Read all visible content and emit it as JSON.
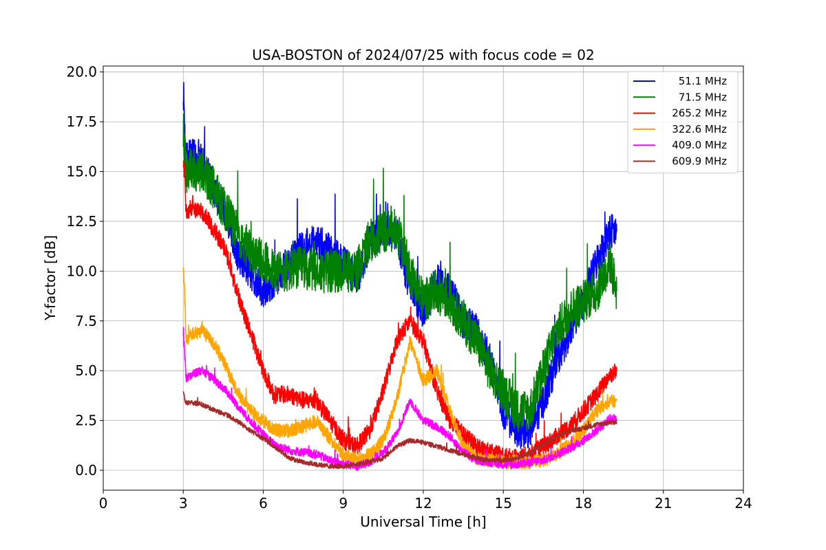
{
  "chart_data": {
    "type": "line",
    "title": "USA-BOSTON of 2024/07/25 with focus code = 02",
    "xlabel": "Universal Time [h]",
    "ylabel": "Y-factor [dB]",
    "xlim": [
      0,
      24
    ],
    "ylim": [
      -1,
      20.3
    ],
    "xticks": [
      0,
      3,
      6,
      9,
      12,
      15,
      18,
      21,
      24
    ],
    "xtick_labels": [
      "0",
      "3",
      "6",
      "9",
      "12",
      "15",
      "18",
      "21",
      "24"
    ],
    "yticks": [
      0,
      2.5,
      5,
      7.5,
      10,
      12.5,
      15,
      17.5,
      20
    ],
    "ytick_labels": [
      "0.0",
      "2.5",
      "5.0",
      "7.5",
      "10.0",
      "12.5",
      "15.0",
      "17.5",
      "20.0"
    ],
    "grid": true,
    "legend_position": "top-right",
    "series": [
      {
        "name": "51.1 MHz",
        "color": "#0000ff",
        "noise": 0.9,
        "x": [
          3.0,
          3.05,
          3.1,
          3.3,
          3.7,
          4.2,
          4.6,
          5.0,
          5.5,
          6.0,
          6.4,
          7.0,
          7.5,
          8.0,
          8.5,
          9.0,
          9.5,
          10.0,
          10.5,
          11.0,
          11.5,
          12.0,
          12.5,
          13.0,
          13.5,
          14.0,
          14.5,
          15.0,
          15.5,
          16.0,
          16.5,
          17.0,
          17.5,
          18.0,
          18.5,
          19.0,
          19.25
        ],
        "y": [
          19.2,
          17.5,
          15.5,
          15.8,
          15.5,
          14.0,
          13.0,
          11.0,
          10.0,
          9.0,
          9.5,
          10.5,
          11.2,
          11.5,
          11.0,
          10.5,
          9.5,
          11.5,
          12.0,
          12.0,
          9.0,
          8.0,
          9.5,
          9.0,
          7.5,
          7.0,
          5.5,
          3.0,
          2.0,
          2.0,
          3.5,
          5.5,
          7.0,
          8.5,
          10.5,
          12.0,
          12.0
        ]
      },
      {
        "name": "71.5 MHz",
        "color": "#008000",
        "noise": 1.1,
        "x": [
          3.0,
          3.05,
          3.1,
          3.3,
          3.7,
          4.2,
          4.6,
          5.0,
          5.5,
          6.0,
          6.4,
          7.0,
          7.5,
          8.0,
          8.5,
          9.0,
          9.5,
          10.0,
          10.5,
          11.0,
          11.5,
          12.0,
          12.5,
          13.0,
          13.5,
          14.0,
          14.5,
          15.0,
          15.5,
          16.0,
          16.5,
          17.0,
          17.5,
          18.0,
          18.5,
          19.0,
          19.25
        ],
        "y": [
          17.0,
          16.5,
          15.0,
          15.2,
          15.0,
          14.0,
          13.0,
          12.0,
          11.0,
          10.5,
          10.0,
          10.0,
          10.2,
          10.0,
          10.0,
          10.0,
          10.0,
          11.5,
          12.0,
          12.0,
          10.0,
          8.5,
          9.0,
          8.5,
          7.5,
          6.5,
          5.0,
          4.0,
          3.0,
          3.0,
          5.0,
          7.0,
          8.0,
          8.5,
          9.0,
          10.5,
          9.0
        ]
      },
      {
        "name": "265.2 MHz",
        "color": "#ff0000",
        "noise": 0.45,
        "x": [
          3.0,
          3.05,
          3.1,
          3.3,
          3.7,
          4.2,
          4.6,
          5.0,
          5.5,
          6.0,
          6.4,
          7.0,
          7.5,
          8.0,
          8.5,
          9.0,
          9.5,
          10.0,
          10.5,
          11.0,
          11.5,
          12.0,
          12.5,
          13.0,
          13.5,
          14.0,
          14.5,
          15.0,
          15.5,
          16.0,
          16.5,
          17.0,
          17.5,
          18.0,
          18.5,
          19.0,
          19.25
        ],
        "y": [
          15.5,
          15.0,
          13.0,
          13.2,
          13.0,
          12.0,
          11.0,
          9.0,
          7.0,
          5.0,
          3.8,
          3.8,
          3.5,
          3.5,
          2.5,
          1.5,
          1.2,
          2.0,
          4.0,
          6.5,
          7.5,
          6.5,
          4.0,
          2.5,
          1.8,
          1.2,
          0.9,
          0.7,
          0.6,
          0.8,
          1.2,
          1.7,
          2.2,
          3.0,
          3.8,
          4.8,
          5.0
        ]
      },
      {
        "name": "322.6 MHz",
        "color": "#ffa500",
        "noise": 0.35,
        "x": [
          3.0,
          3.05,
          3.1,
          3.3,
          3.7,
          4.2,
          4.6,
          5.0,
          5.5,
          6.0,
          6.4,
          7.0,
          7.5,
          8.0,
          8.5,
          9.0,
          9.5,
          10.0,
          10.5,
          11.0,
          11.5,
          12.0,
          12.5,
          13.0,
          13.5,
          14.0,
          14.5,
          15.0,
          15.5,
          16.0,
          16.5,
          17.0,
          17.5,
          18.0,
          18.5,
          19.0,
          19.25
        ],
        "y": [
          10.2,
          9.0,
          6.5,
          6.8,
          7.0,
          6.3,
          5.2,
          4.0,
          3.0,
          2.5,
          2.0,
          2.0,
          2.2,
          2.5,
          1.6,
          0.8,
          0.5,
          0.8,
          1.5,
          3.5,
          6.5,
          4.5,
          5.0,
          3.0,
          1.2,
          0.6,
          0.5,
          0.4,
          0.4,
          0.4,
          0.5,
          0.8,
          1.3,
          2.0,
          3.0,
          3.5,
          3.5
        ]
      },
      {
        "name": "409.0 MHz",
        "color": "#ff00ff",
        "noise": 0.22,
        "x": [
          3.0,
          3.05,
          3.1,
          3.3,
          3.7,
          4.2,
          4.6,
          5.0,
          5.5,
          6.0,
          6.4,
          7.0,
          7.5,
          8.0,
          8.5,
          9.0,
          9.5,
          10.0,
          10.5,
          11.0,
          11.5,
          12.0,
          12.5,
          13.0,
          13.5,
          14.0,
          14.5,
          15.0,
          15.5,
          16.0,
          16.5,
          17.0,
          17.5,
          18.0,
          18.5,
          19.0,
          19.25
        ],
        "y": [
          6.8,
          6.0,
          4.6,
          4.8,
          5.0,
          4.5,
          4.0,
          3.3,
          2.5,
          1.8,
          1.3,
          1.0,
          0.9,
          0.8,
          0.5,
          0.3,
          0.2,
          0.4,
          0.9,
          1.8,
          3.5,
          2.5,
          2.2,
          1.7,
          0.9,
          0.5,
          0.4,
          0.3,
          0.3,
          0.4,
          0.5,
          0.8,
          1.1,
          1.5,
          2.0,
          2.6,
          2.6
        ]
      },
      {
        "name": "609.9 MHz",
        "color": "#a52a2a",
        "noise": 0.12,
        "x": [
          3.0,
          3.05,
          3.1,
          3.3,
          3.7,
          4.2,
          4.6,
          5.0,
          5.5,
          6.0,
          6.4,
          7.0,
          7.5,
          8.0,
          8.5,
          9.0,
          9.5,
          10.0,
          10.5,
          11.0,
          11.5,
          12.0,
          12.5,
          13.0,
          13.5,
          14.0,
          14.5,
          15.0,
          15.5,
          16.0,
          16.5,
          17.0,
          17.5,
          18.0,
          18.5,
          19.0,
          19.25
        ],
        "y": [
          4.0,
          3.6,
          3.4,
          3.4,
          3.3,
          3.0,
          2.8,
          2.5,
          2.0,
          1.6,
          1.2,
          0.6,
          0.4,
          0.3,
          0.2,
          0.2,
          0.3,
          0.4,
          0.6,
          1.2,
          1.5,
          1.4,
          1.2,
          1.0,
          0.8,
          0.6,
          0.5,
          0.5,
          0.6,
          0.9,
          1.3,
          1.7,
          2.0,
          2.1,
          2.3,
          2.4,
          2.4
        ]
      }
    ]
  }
}
